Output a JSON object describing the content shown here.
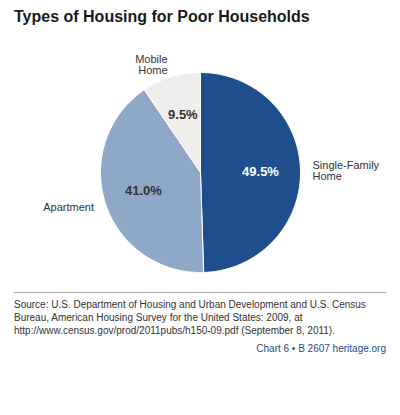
{
  "chart_data": {
    "type": "pie",
    "title": "Types of Housing for Poor Households",
    "categories": [
      "Single-Family\nHome",
      "Apartment",
      "Mobile\nHome"
    ],
    "values": [
      49.5,
      41.0,
      9.5
    ],
    "value_labels": [
      "49.5%",
      "41.0%",
      "9.5%"
    ],
    "colors": [
      "#1f4e8c",
      "#8fa8c8",
      "#f0eeec"
    ],
    "data_labels": true,
    "annotations": [
      "Source: U.S. Department of Housing and Urban Development and U.S. Census Bureau, American Housing Survey for the United States: 2009, at http://www.census.gov/prod/2011pubs/h150-09.pdf (September 8, 2011).",
      "Chart 6 • B 2607 heritage.org"
    ]
  }
}
